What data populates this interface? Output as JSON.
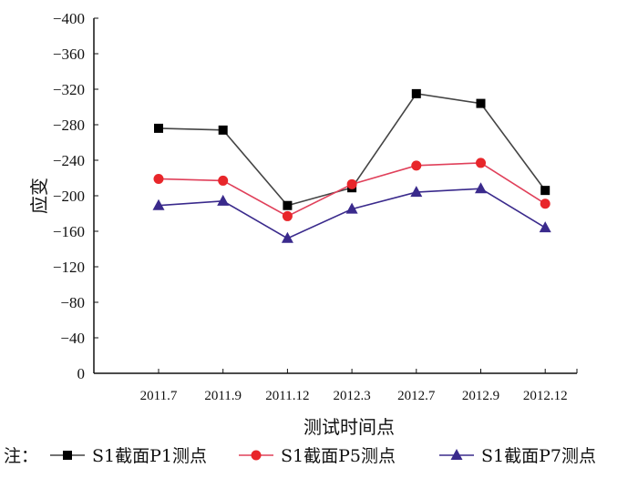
{
  "chart_data": {
    "type": "line",
    "title": "",
    "xlabel": "测试时间点",
    "ylabel": "应变",
    "categories": [
      "2011.7",
      "2011.9",
      "2011.12",
      "2012.3",
      "2012.7",
      "2012.9",
      "2012.12"
    ],
    "ylim": [
      0,
      -400
    ],
    "yticks": [
      0,
      -40,
      -80,
      -120,
      -160,
      -200,
      -240,
      -280,
      -320,
      -360,
      -400
    ],
    "ytick_labels": [
      "0",
      "−40",
      "−80",
      "−120",
      "−160",
      "−200",
      "−240",
      "−280",
      "−320",
      "−360",
      "−400"
    ],
    "y_inverted": true,
    "grid": false,
    "legend_prefix": "注：",
    "legend_position": "bottom",
    "series": [
      {
        "name": "S1截面P1测点",
        "marker": "square",
        "color": "#000000",
        "line_color": "#444444",
        "values": [
          -276,
          -274,
          -189,
          -209,
          -315,
          -304,
          -206
        ]
      },
      {
        "name": "S1截面P5测点",
        "marker": "circle",
        "color": "#e8262a",
        "line_color": "#e0405a",
        "values": [
          -219,
          -217,
          -177,
          -213,
          -234,
          -237,
          -191
        ]
      },
      {
        "name": "S1截面P7测点",
        "marker": "triangle",
        "color": "#3a2a8c",
        "line_color": "#3a2a8c",
        "values": [
          -189,
          -194,
          -152,
          -185,
          -204,
          -208,
          -164
        ]
      }
    ]
  }
}
